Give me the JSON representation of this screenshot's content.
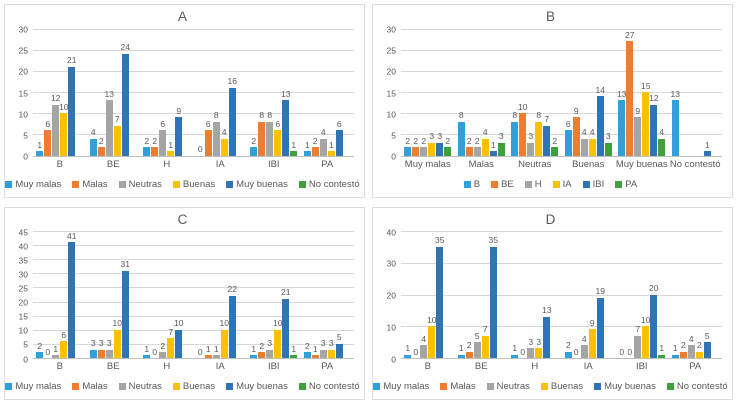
{
  "colors": {
    "background": "#ffffff",
    "panel_border": "#d8dde3",
    "gridline": "#d9d9d9",
    "axis_line": "#bfbfbf",
    "text": "#595959",
    "series_light_blue": "#2fa0da",
    "series_orange": "#ed7d31",
    "series_gray": "#a5a5a5",
    "series_yellow": "#ffc000",
    "series_dark_blue": "#2e75b6",
    "series_green": "#3fa13d"
  },
  "chart_data": [
    {
      "type": "bar",
      "title": "A",
      "categories": [
        "B",
        "BE",
        "H",
        "IA",
        "IBI",
        "PA"
      ],
      "series": [
        {
          "name": "Muy malas",
          "color": "#2fa0da",
          "values": [
            1,
            4,
            2,
            0,
            2,
            1
          ]
        },
        {
          "name": "Malas",
          "color": "#ed7d31",
          "values": [
            6,
            2,
            2,
            6,
            8,
            2
          ]
        },
        {
          "name": "Neutras",
          "color": "#a5a5a5",
          "values": [
            12,
            13,
            6,
            8,
            8,
            4
          ]
        },
        {
          "name": "Buenas",
          "color": "#ffc000",
          "values": [
            10,
            7,
            1,
            4,
            6,
            1
          ]
        },
        {
          "name": "Muy buenas",
          "color": "#2e75b6",
          "values": [
            21,
            24,
            9,
            16,
            13,
            6
          ]
        },
        {
          "name": "No contestó",
          "color": "#3fa13d",
          "values": [
            null,
            null,
            null,
            null,
            1,
            null
          ]
        }
      ],
      "ylim": [
        0,
        30
      ],
      "ystep": 5,
      "yticks": [
        0,
        5,
        10,
        15,
        20,
        25,
        30
      ],
      "grid": true,
      "legend_position": "bottom",
      "data_labels": true
    },
    {
      "type": "bar",
      "title": "B",
      "categories": [
        "Muy malas",
        "Malas",
        "Neutras",
        "Buenas",
        "Muy buenas",
        "No contestó"
      ],
      "series": [
        {
          "name": "B",
          "color": "#2fa0da",
          "values": [
            2,
            8,
            8,
            6,
            13,
            13
          ]
        },
        {
          "name": "BE",
          "color": "#ed7d31",
          "values": [
            2,
            2,
            10,
            9,
            27,
            null
          ]
        },
        {
          "name": "H",
          "color": "#a5a5a5",
          "values": [
            2,
            2,
            3,
            4,
            9,
            null
          ]
        },
        {
          "name": "IA",
          "color": "#ffc000",
          "values": [
            3,
            4,
            8,
            4,
            15,
            null
          ]
        },
        {
          "name": "IBI",
          "color": "#2e75b6",
          "values": [
            3,
            1,
            7,
            14,
            12,
            1
          ]
        },
        {
          "name": "PA",
          "color": "#3fa13d",
          "values": [
            2,
            3,
            2,
            3,
            4,
            null
          ]
        }
      ],
      "ylim": [
        0,
        30
      ],
      "ystep": 5,
      "yticks": [
        0,
        5,
        10,
        15,
        20,
        25,
        30
      ],
      "grid": true,
      "legend_position": "bottom",
      "data_labels": true
    },
    {
      "type": "bar",
      "title": "C",
      "categories": [
        "B",
        "BE",
        "H",
        "IA",
        "IBI",
        "PA"
      ],
      "series": [
        {
          "name": "Muy malas",
          "color": "#2fa0da",
          "values": [
            2,
            3,
            1,
            0,
            1,
            2
          ]
        },
        {
          "name": "Malas",
          "color": "#ed7d31",
          "values": [
            0,
            3,
            0,
            1,
            2,
            1
          ]
        },
        {
          "name": "Neutras",
          "color": "#a5a5a5",
          "values": [
            1,
            3,
            2,
            1,
            3,
            3
          ]
        },
        {
          "name": "Buenas",
          "color": "#ffc000",
          "values": [
            6,
            10,
            7,
            10,
            10,
            3
          ]
        },
        {
          "name": "Muy buenas",
          "color": "#2e75b6",
          "values": [
            41,
            31,
            10,
            22,
            21,
            5
          ]
        },
        {
          "name": "No contestó",
          "color": "#3fa13d",
          "values": [
            null,
            null,
            null,
            null,
            1,
            null
          ]
        }
      ],
      "ylim": [
        0,
        45
      ],
      "ystep": 5,
      "yticks": [
        0,
        5,
        10,
        15,
        20,
        25,
        30,
        35,
        40,
        45
      ],
      "grid": true,
      "legend_position": "bottom",
      "data_labels": true
    },
    {
      "type": "bar",
      "title": "D",
      "categories": [
        "B",
        "BE",
        "H",
        "IA",
        "IBI",
        "PA"
      ],
      "series": [
        {
          "name": "Muy malas",
          "color": "#2fa0da",
          "values": [
            1,
            1,
            1,
            2,
            0,
            1
          ]
        },
        {
          "name": "Malas",
          "color": "#ed7d31",
          "values": [
            0,
            2,
            0,
            0,
            0,
            2
          ]
        },
        {
          "name": "Neutras",
          "color": "#a5a5a5",
          "values": [
            4,
            5,
            3,
            4,
            7,
            4
          ]
        },
        {
          "name": "Buenas",
          "color": "#ffc000",
          "values": [
            10,
            7,
            3,
            9,
            10,
            2
          ]
        },
        {
          "name": "Muy buenas",
          "color": "#2e75b6",
          "values": [
            35,
            35,
            13,
            19,
            20,
            5
          ]
        },
        {
          "name": "No contestó",
          "color": "#3fa13d",
          "values": [
            null,
            null,
            null,
            null,
            1,
            null
          ]
        }
      ],
      "ylim": [
        0,
        40
      ],
      "ystep": 10,
      "yticks": [
        0,
        10,
        20,
        30,
        40
      ],
      "grid": true,
      "legend_position": "bottom",
      "data_labels": true
    }
  ]
}
